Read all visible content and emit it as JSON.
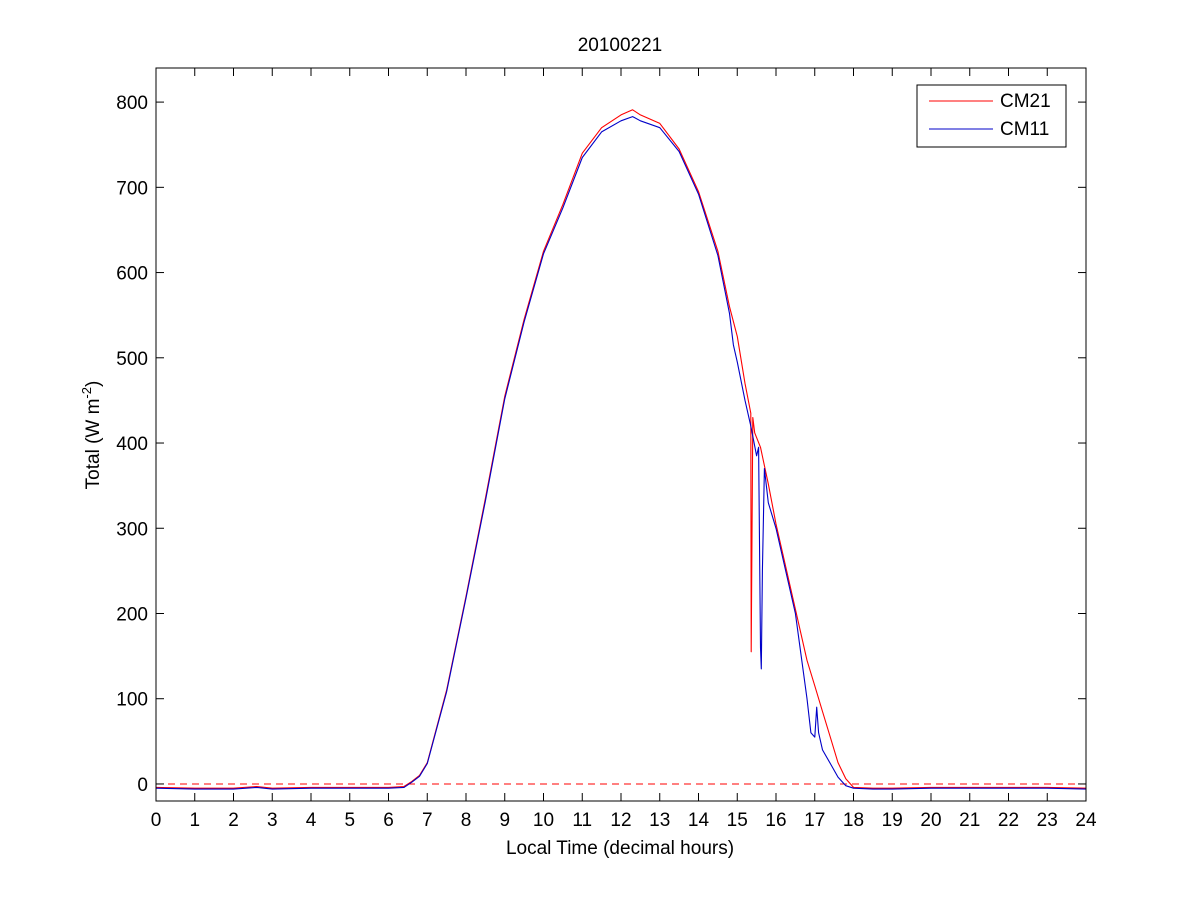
{
  "chart_data": {
    "type": "line",
    "title": "20100221",
    "xlabel": "Local Time (decimal hours)",
    "ylabel": "Total (W m",
    "ylabel_sup": "-2",
    "ylabel_close": ")",
    "xlim": [
      0,
      24
    ],
    "ylim": [
      -20,
      840
    ],
    "xticks": [
      0,
      1,
      2,
      3,
      4,
      5,
      6,
      7,
      8,
      9,
      10,
      11,
      12,
      13,
      14,
      15,
      16,
      17,
      18,
      19,
      20,
      21,
      22,
      23,
      24
    ],
    "yticks": [
      0,
      100,
      200,
      300,
      400,
      500,
      600,
      700,
      800
    ],
    "grid": false,
    "legend": "top-right",
    "reference_line": {
      "y": 0,
      "color": "#ff0000",
      "style": "dashed"
    },
    "series": [
      {
        "name": "CM21",
        "color": "#ff0000",
        "x": [
          0,
          1,
          2,
          2.6,
          3,
          4,
          5,
          6,
          6.4,
          6.6,
          6.8,
          7,
          7.5,
          8,
          8.5,
          9,
          9.5,
          10,
          10.5,
          11,
          11.5,
          12,
          12.3,
          12.5,
          13,
          13.5,
          14,
          14.5,
          14.8,
          15,
          15.2,
          15.35,
          15.36,
          15.4,
          15.45,
          15.6,
          15.8,
          16,
          16.5,
          16.8,
          17,
          17.2,
          17.4,
          17.6,
          17.8,
          18,
          18.5,
          19,
          20,
          21,
          22,
          23,
          24
        ],
        "y": [
          -4,
          -5,
          -5,
          -3,
          -5,
          -4,
          -4,
          -4,
          -3,
          3,
          10,
          25,
          110,
          220,
          335,
          455,
          545,
          625,
          680,
          740,
          770,
          785,
          791,
          785,
          775,
          745,
          695,
          625,
          560,
          525,
          470,
          435,
          155,
          430,
          412,
          395,
          352,
          305,
          205,
          145,
          115,
          85,
          55,
          25,
          6,
          -4,
          -5,
          -5,
          -4,
          -4,
          -4,
          -4,
          -5
        ]
      },
      {
        "name": "CM11",
        "color": "#0000c8",
        "x": [
          0,
          1,
          2,
          2.6,
          3,
          4,
          5,
          6,
          6.4,
          6.6,
          6.8,
          7,
          7.5,
          8,
          8.5,
          9,
          9.5,
          10,
          10.5,
          11,
          11.5,
          12,
          12.3,
          12.5,
          13,
          13.5,
          14,
          14.5,
          14.8,
          14.9,
          15,
          15.2,
          15.35,
          15.5,
          15.55,
          15.6,
          15.62,
          15.65,
          15.7,
          15.8,
          16,
          16.5,
          16.8,
          16.9,
          17,
          17.05,
          17.1,
          17.2,
          17.4,
          17.6,
          17.8,
          18,
          18.5,
          19,
          20,
          21,
          22,
          23,
          24
        ],
        "y": [
          -5,
          -6,
          -6,
          -4,
          -6,
          -5,
          -5,
          -5,
          -4,
          2,
          9,
          24,
          108,
          218,
          332,
          452,
          542,
          622,
          676,
          735,
          765,
          778,
          783,
          778,
          770,
          742,
          692,
          620,
          552,
          515,
          495,
          450,
          420,
          385,
          395,
          160,
          135,
          250,
          370,
          330,
          300,
          200,
          100,
          60,
          55,
          90,
          60,
          40,
          24,
          8,
          -2,
          -5,
          -6,
          -6,
          -5,
          -5,
          -5,
          -5,
          -6
        ]
      }
    ]
  }
}
